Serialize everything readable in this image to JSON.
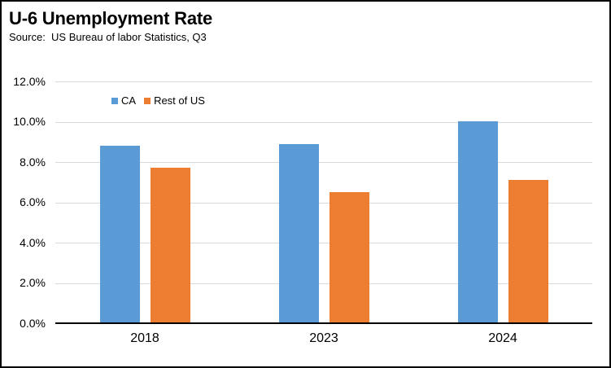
{
  "header": {
    "title": "U-6 Unemployment Rate",
    "source": "Source:  US Bureau of labor Statistics, Q3"
  },
  "chart_data": {
    "type": "bar",
    "title": "U-6 Unemployment Rate",
    "subtitle": "Source:  US Bureau of labor Statistics, Q3",
    "categories": [
      "2018",
      "2023",
      "2024"
    ],
    "series": [
      {
        "name": "CA",
        "color": "#5B9BD5",
        "values": [
          8.8,
          8.9,
          10.0
        ]
      },
      {
        "name": "Rest of US",
        "color": "#ED7D31",
        "values": [
          7.7,
          6.5,
          7.1
        ]
      }
    ],
    "xlabel": "",
    "ylabel": "",
    "ylim": [
      0,
      12
    ],
    "ytick_step": 2,
    "ytick_labels": [
      "0.0%",
      "2.0%",
      "4.0%",
      "6.0%",
      "8.0%",
      "10.0%",
      "12.0%"
    ],
    "grid": true,
    "gridline_color": "#D9D9D9",
    "axis_color": "#000000",
    "legend_position": "top-left"
  }
}
